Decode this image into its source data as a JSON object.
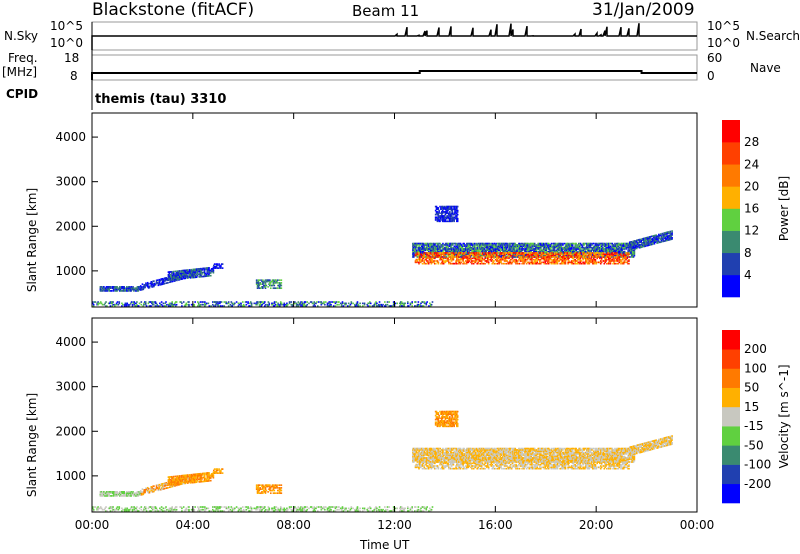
{
  "header": {
    "station": "Blackstone (fitACF)",
    "beam": "Beam 11",
    "date": "31/Jan/2009"
  },
  "strips": {
    "nsky_label": "N.Sky",
    "nsky_ticks": [
      "10^5",
      "10^0"
    ],
    "nsearch_label": "N.Search",
    "nsearch_ticks": [
      "10^5",
      "10^0"
    ],
    "freq_label": "Freq.",
    "freq_unit": "[MHz]",
    "freq_ticks": [
      "18",
      "8"
    ],
    "nave_label": "Nave",
    "nave_ticks": [
      "60",
      "0"
    ],
    "cpid_label": "CPID",
    "cpid_value": "themis (tau) 3310"
  },
  "chart_data": {
    "type": "scatter",
    "xlabel": "Time UT",
    "ylabel": "Slant Range [km]",
    "xlim": [
      0,
      24
    ],
    "ylim": [
      190,
      4540
    ],
    "xticks": [
      "00:00",
      "04:00",
      "08:00",
      "12:00",
      "16:00",
      "20:00",
      "00:00"
    ],
    "yticks": [
      "1000",
      "2000",
      "3000",
      "4000"
    ],
    "power_scale": {
      "label": "Power [dB]",
      "ticks": [
        "28",
        "24",
        "20",
        "16",
        "12",
        "8",
        "4"
      ],
      "colors": [
        "#0000ff",
        "#2040b0",
        "#3a8a70",
        "#60d040",
        "#ffb000",
        "#ff7a00",
        "#ff4000",
        "#ff0000"
      ]
    },
    "velocity_scale": {
      "label": "Velocity [m s^-1]",
      "ticks": [
        "200",
        "100",
        "50",
        "15",
        "-15",
        "-50",
        "-100",
        "-200"
      ],
      "colors": [
        "#0000ff",
        "#2040b0",
        "#3a8a70",
        "#60d040",
        "#c8c8c0",
        "#ffb000",
        "#ff7a00",
        "#ff4000",
        "#ff0000"
      ]
    },
    "clusters": [
      {
        "t": [
          0.3,
          1.9
        ],
        "r": [
          540,
          650
        ],
        "slope": 0,
        "p": [
          0,
          2
        ],
        "v": [
          3,
          4
        ],
        "density": 0.8
      },
      {
        "t": [
          1.9,
          4.0
        ],
        "r": [
          560,
          700
        ],
        "slope": 150,
        "p": [
          0,
          1
        ],
        "v": [
          4,
          6
        ],
        "density": 0.6
      },
      {
        "t": [
          3.0,
          4.8
        ],
        "r": [
          780,
          980
        ],
        "slope": 60,
        "p": [
          0,
          2
        ],
        "v": [
          5,
          6
        ],
        "density": 0.7
      },
      {
        "t": [
          4.8,
          5.2
        ],
        "r": [
          1050,
          1150
        ],
        "slope": 0,
        "p": [
          0,
          1
        ],
        "v": [
          5,
          6
        ],
        "density": 0.5
      },
      {
        "t": [
          6.5,
          7.5
        ],
        "r": [
          600,
          800
        ],
        "slope": 0,
        "p": [
          1,
          3
        ],
        "v": [
          5,
          6
        ],
        "density": 0.55
      },
      {
        "t": [
          0.0,
          13.5
        ],
        "r": [
          200,
          300
        ],
        "slope": 0,
        "p": [
          0,
          3
        ],
        "v": [
          3,
          4
        ],
        "density": 0.35
      },
      {
        "t": [
          12.7,
          21.5
        ],
        "r": [
          1300,
          1620
        ],
        "slope": 0,
        "p": [
          0,
          3
        ],
        "v": [
          4,
          5
        ],
        "density": 0.75
      },
      {
        "t": [
          12.8,
          21.3
        ],
        "r": [
          1150,
          1400
        ],
        "slope": 0,
        "p": [
          4,
          7
        ],
        "v": [
          4,
          5
        ],
        "density": 0.5
      },
      {
        "t": [
          13.6,
          14.5
        ],
        "r": [
          2100,
          2450
        ],
        "slope": 0,
        "p": [
          0,
          1
        ],
        "v": [
          5,
          6
        ],
        "density": 0.6
      },
      {
        "t": [
          21.3,
          23.0
        ],
        "r": [
          1450,
          1650
        ],
        "slope": 150,
        "p": [
          0,
          2
        ],
        "v": [
          4,
          5
        ],
        "density": 0.75
      }
    ]
  }
}
